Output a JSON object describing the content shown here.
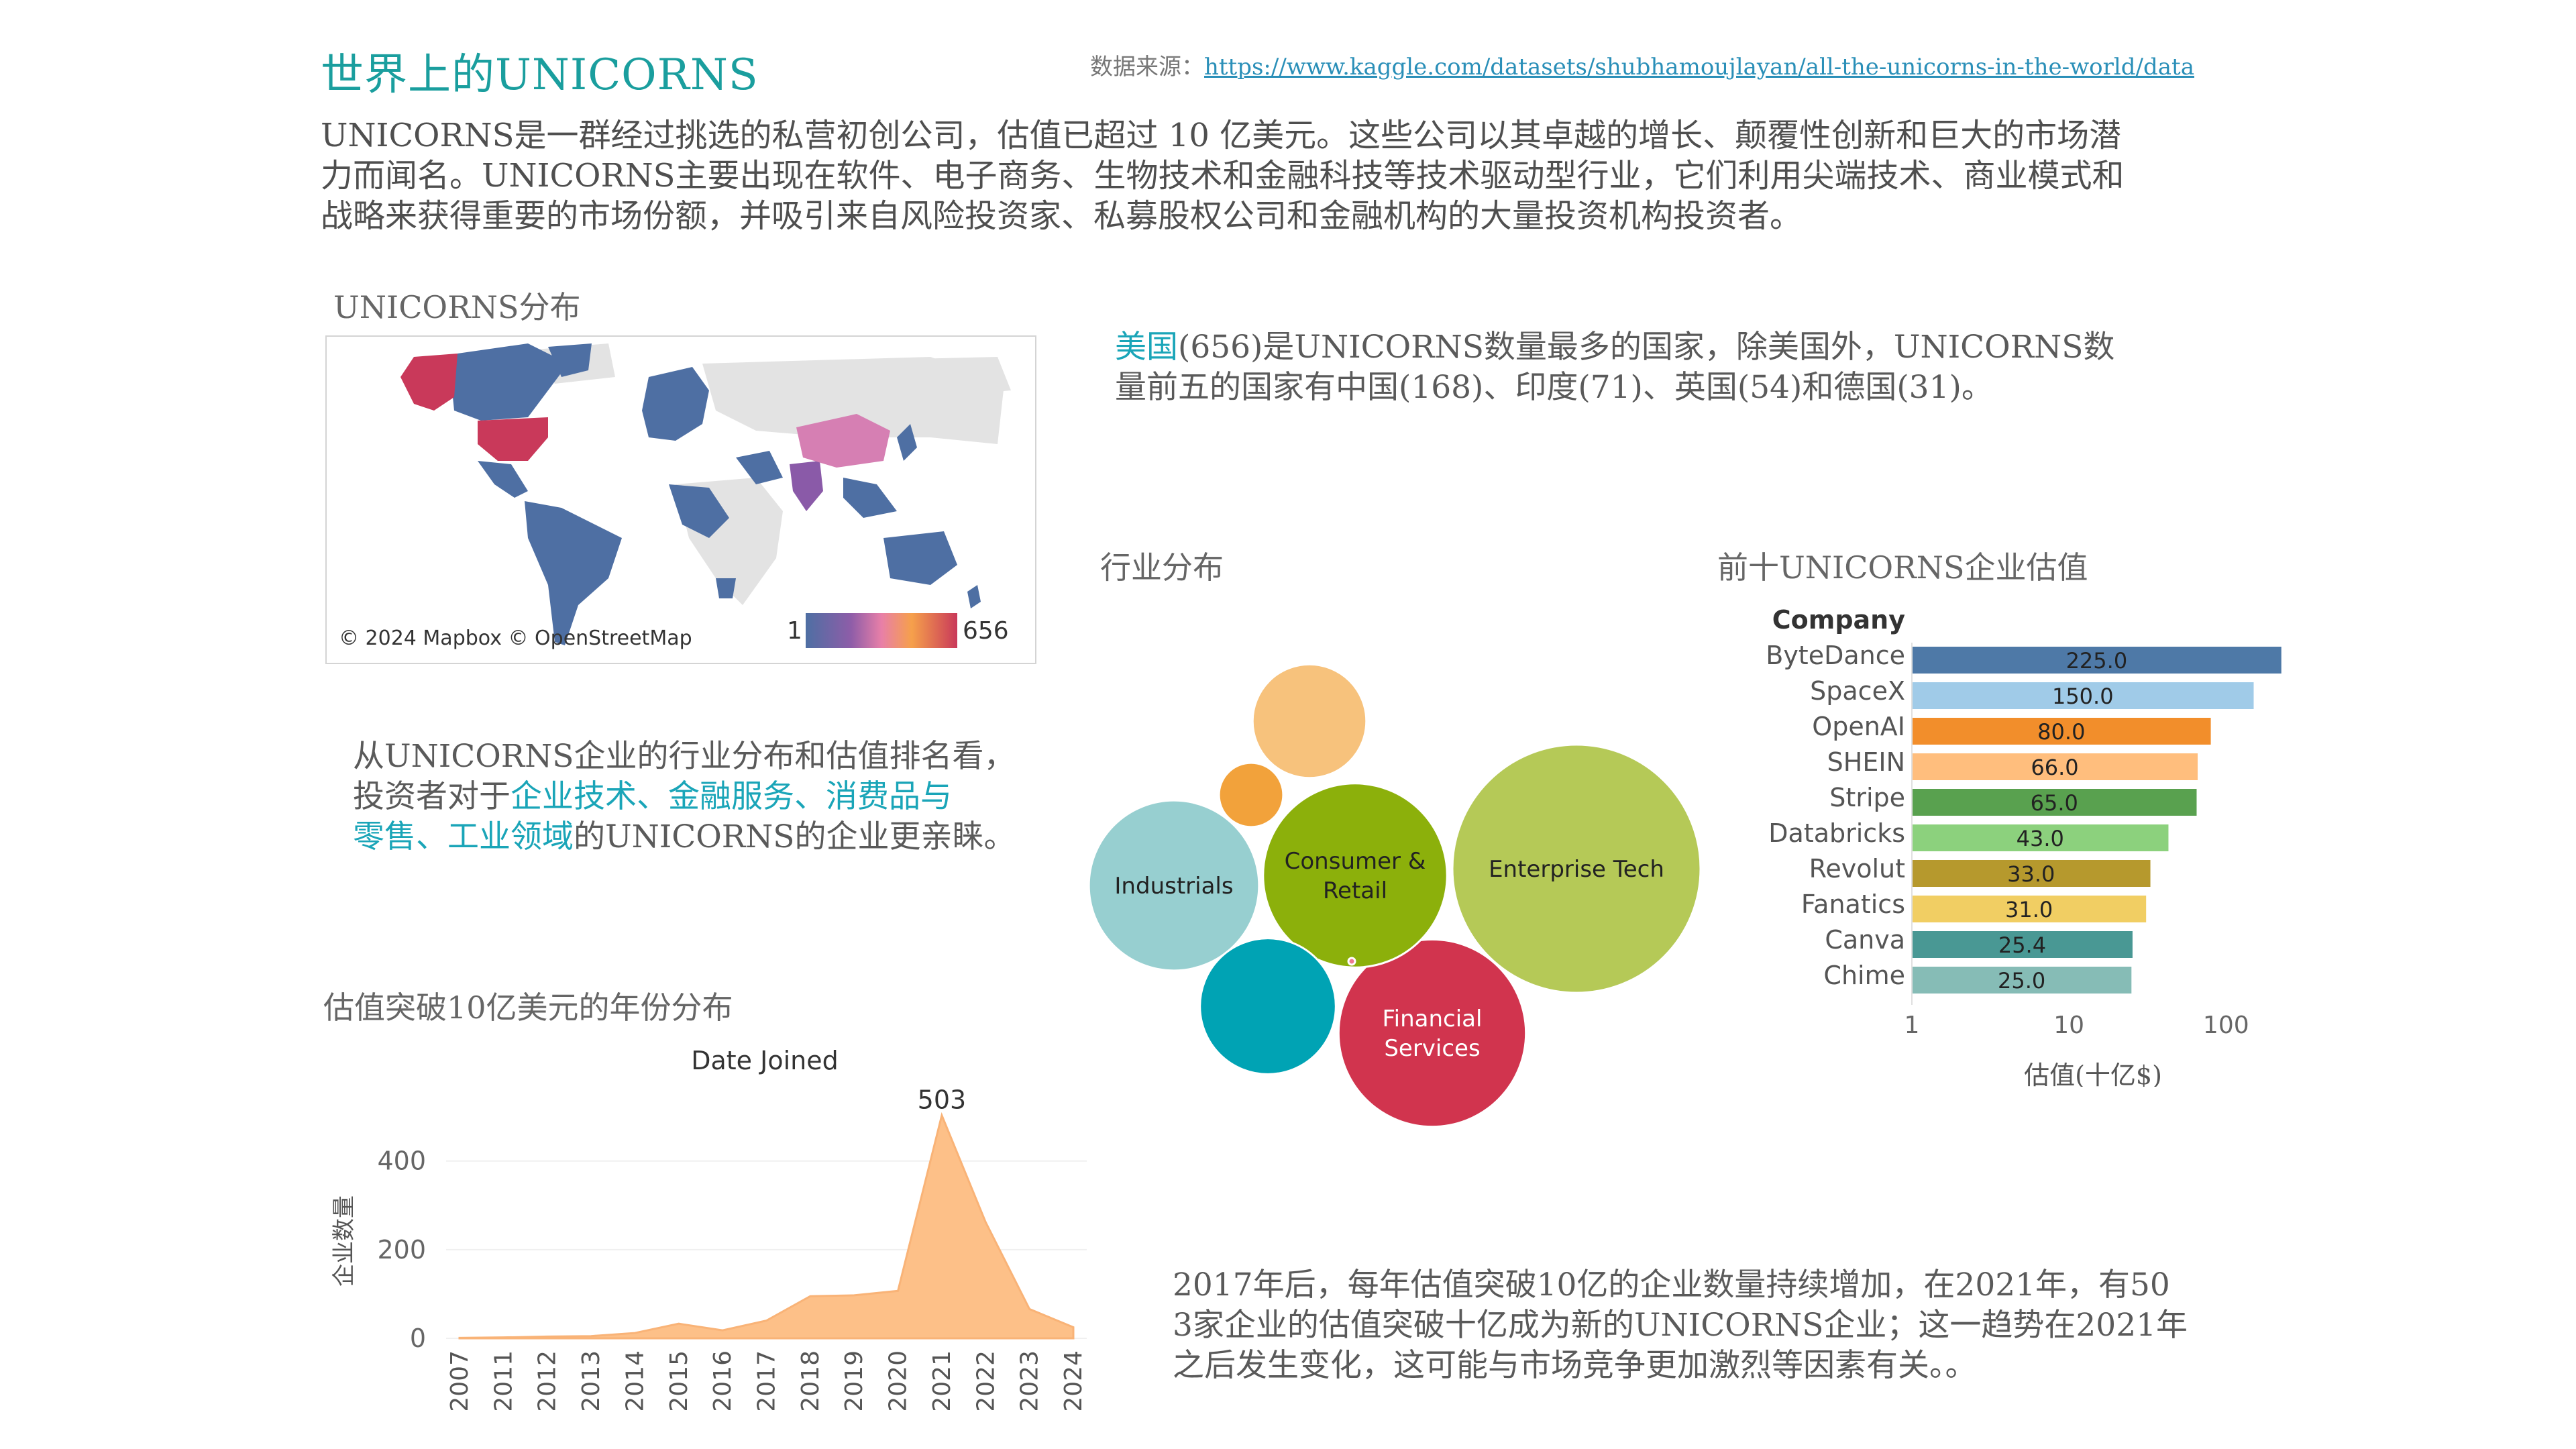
{
  "header": {
    "title": "世界上的UNICORNS",
    "source_label": "数据来源：",
    "source_url": "https://www.kaggle.com/datasets/shubhamoujlayan/all-the-unicorns-in-the-world/data"
  },
  "intro": {
    "lines": [
      "UNICORNS是一群经过挑选的私营初创公司，估值已超过 10 亿美元。这些公司以其卓越的增长、颠覆性创新和巨大的市场潜",
      "力而闻名。UNICORNS主要出现在软件、电子商务、生物技术和金融科技等技术驱动型行业，它们利用尖端技术、商业模式和",
      "战略来获得重要的市场份额，并吸引来自风险投资家、私募股权公司和金融机构的大量投资机构投资者。"
    ]
  },
  "map": {
    "section_title": "UNICORNS分布",
    "attribution": "© 2024 Mapbox © OpenStreetMap",
    "legend_min": "1",
    "legend_max": "656"
  },
  "country_text": {
    "l1_hl": "美国",
    "l1_rest": "(656)是UNICORNS数量最多的国家，除美国外，UNICORNS数",
    "l2": "量前五的国家有中国(168)、印度(71)、英国(54)和德国(31)。"
  },
  "industry_text": {
    "l1": "从UNICORNS企业的行业分布和估值排名看，",
    "l2_a": "投资者对于",
    "l2_hl": "企业技术、金融服务、消费品与",
    "l3_hl": "零售、工业领域",
    "l3_b": "的UNICORNS的企业更亲睐。"
  },
  "trend_text": {
    "lines": [
      "2017年后，每年估值突破10亿的企业数量持续增加，在2021年，有50",
      "3家企业的估值突破十亿成为新的UNICORNS企业；这一趋势在2021年",
      "之后发生变化，这可能与市场竞争更加激烈等因素有关。。"
    ]
  },
  "colors": {
    "title": "#1a9e9e",
    "highlight": "#1aa5b8",
    "area": "#fdc088"
  },
  "chart_data": [
    {
      "type": "bubble",
      "section_title": "行业分布",
      "bubbles": [
        {
          "label": "Enterprise Tech",
          "color": "#b5c957",
          "size": 1.0
        },
        {
          "label": "Financial Services",
          "color": "#d1344e",
          "size": 0.57
        },
        {
          "label": "Consumer & Retail",
          "color": "#8cb00b",
          "size": 0.55
        },
        {
          "label": "Industrials",
          "color": "#97cfd0",
          "size": 0.47
        },
        {
          "label": "",
          "color": "#00a3b4",
          "size": 0.3
        },
        {
          "label": "",
          "color": "#f7c27c",
          "size": 0.21
        },
        {
          "label": "",
          "color": "#f2a23b",
          "size": 0.067
        },
        {
          "label": "",
          "color": "#ee7a8e",
          "size": 0.0006
        }
      ]
    },
    {
      "type": "bar",
      "section_title": "前十UNICORNS企业估值",
      "header": "Company",
      "categories": [
        "ByteDance",
        "SpaceX",
        "OpenAI",
        "SHEIN",
        "Stripe",
        "Databricks",
        "Revolut",
        "Fanatics",
        "Canva",
        "Chime"
      ],
      "values": [
        225.0,
        150.0,
        80.0,
        66.0,
        65.0,
        43.0,
        33.0,
        31.0,
        25.4,
        25.0
      ],
      "colors": [
        "#4e79a7",
        "#a0cbe8",
        "#f28e2b",
        "#ffbe7d",
        "#59a14f",
        "#8cd17d",
        "#b6992d",
        "#f1ce63",
        "#499894",
        "#86bcb6"
      ],
      "xscale": "log",
      "xlim": [
        1,
        300
      ],
      "xticks": [
        "1",
        "10",
        "100"
      ],
      "xlabel": "估值(十亿$)"
    },
    {
      "type": "area",
      "section_title": "估值突破10亿美元的年份分布",
      "title": "Date Joined",
      "ylabel": "企业数量",
      "x": [
        "2007",
        "2011",
        "2012",
        "2013",
        "2014",
        "2015",
        "2016",
        "2017",
        "2018",
        "2019",
        "2020",
        "2021",
        "2022",
        "2023",
        "2024"
      ],
      "values": [
        1,
        2,
        4,
        5,
        12,
        33,
        18,
        40,
        95,
        97,
        107,
        503,
        262,
        66,
        25
      ],
      "ylim": [
        0,
        560
      ],
      "yticks": [
        "0",
        "200",
        "400"
      ],
      "peak_label": "503"
    }
  ]
}
